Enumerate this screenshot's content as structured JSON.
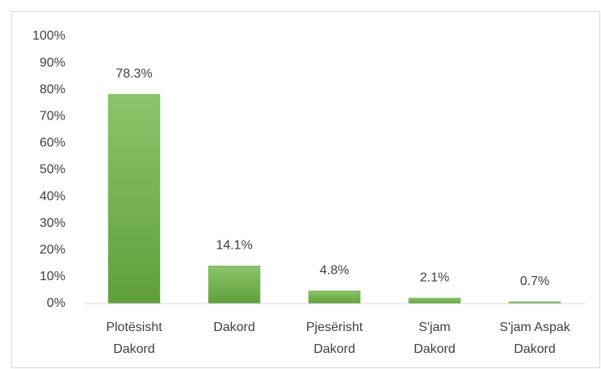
{
  "chart_data": {
    "type": "bar",
    "categories": [
      [
        "Plotësisht",
        "Dakord"
      ],
      [
        "Dakord"
      ],
      [
        "Pjesërisht",
        "Dakord"
      ],
      [
        "S'jam",
        "Dakord"
      ],
      [
        "S'jam Aspak",
        "Dakord"
      ]
    ],
    "values": [
      78.3,
      14.1,
      4.8,
      2.1,
      0.7
    ],
    "value_labels": [
      "78.3%",
      "14.1%",
      "4.8%",
      "2.1%",
      "0.7%"
    ],
    "color": "#70ad47",
    "ylim": [
      0,
      100
    ],
    "yticks": [
      {
        "value": 0,
        "label": "0%"
      },
      {
        "value": 10,
        "label": "10%"
      },
      {
        "value": 20,
        "label": "20%"
      },
      {
        "value": 30,
        "label": "30%"
      },
      {
        "value": 40,
        "label": "40%"
      },
      {
        "value": 50,
        "label": "50%"
      },
      {
        "value": 60,
        "label": "60%"
      },
      {
        "value": 70,
        "label": "70%"
      },
      {
        "value": 80,
        "label": "80%"
      },
      {
        "value": 90,
        "label": "90%"
      },
      {
        "value": 100,
        "label": "100%"
      }
    ],
    "grid": false
  }
}
